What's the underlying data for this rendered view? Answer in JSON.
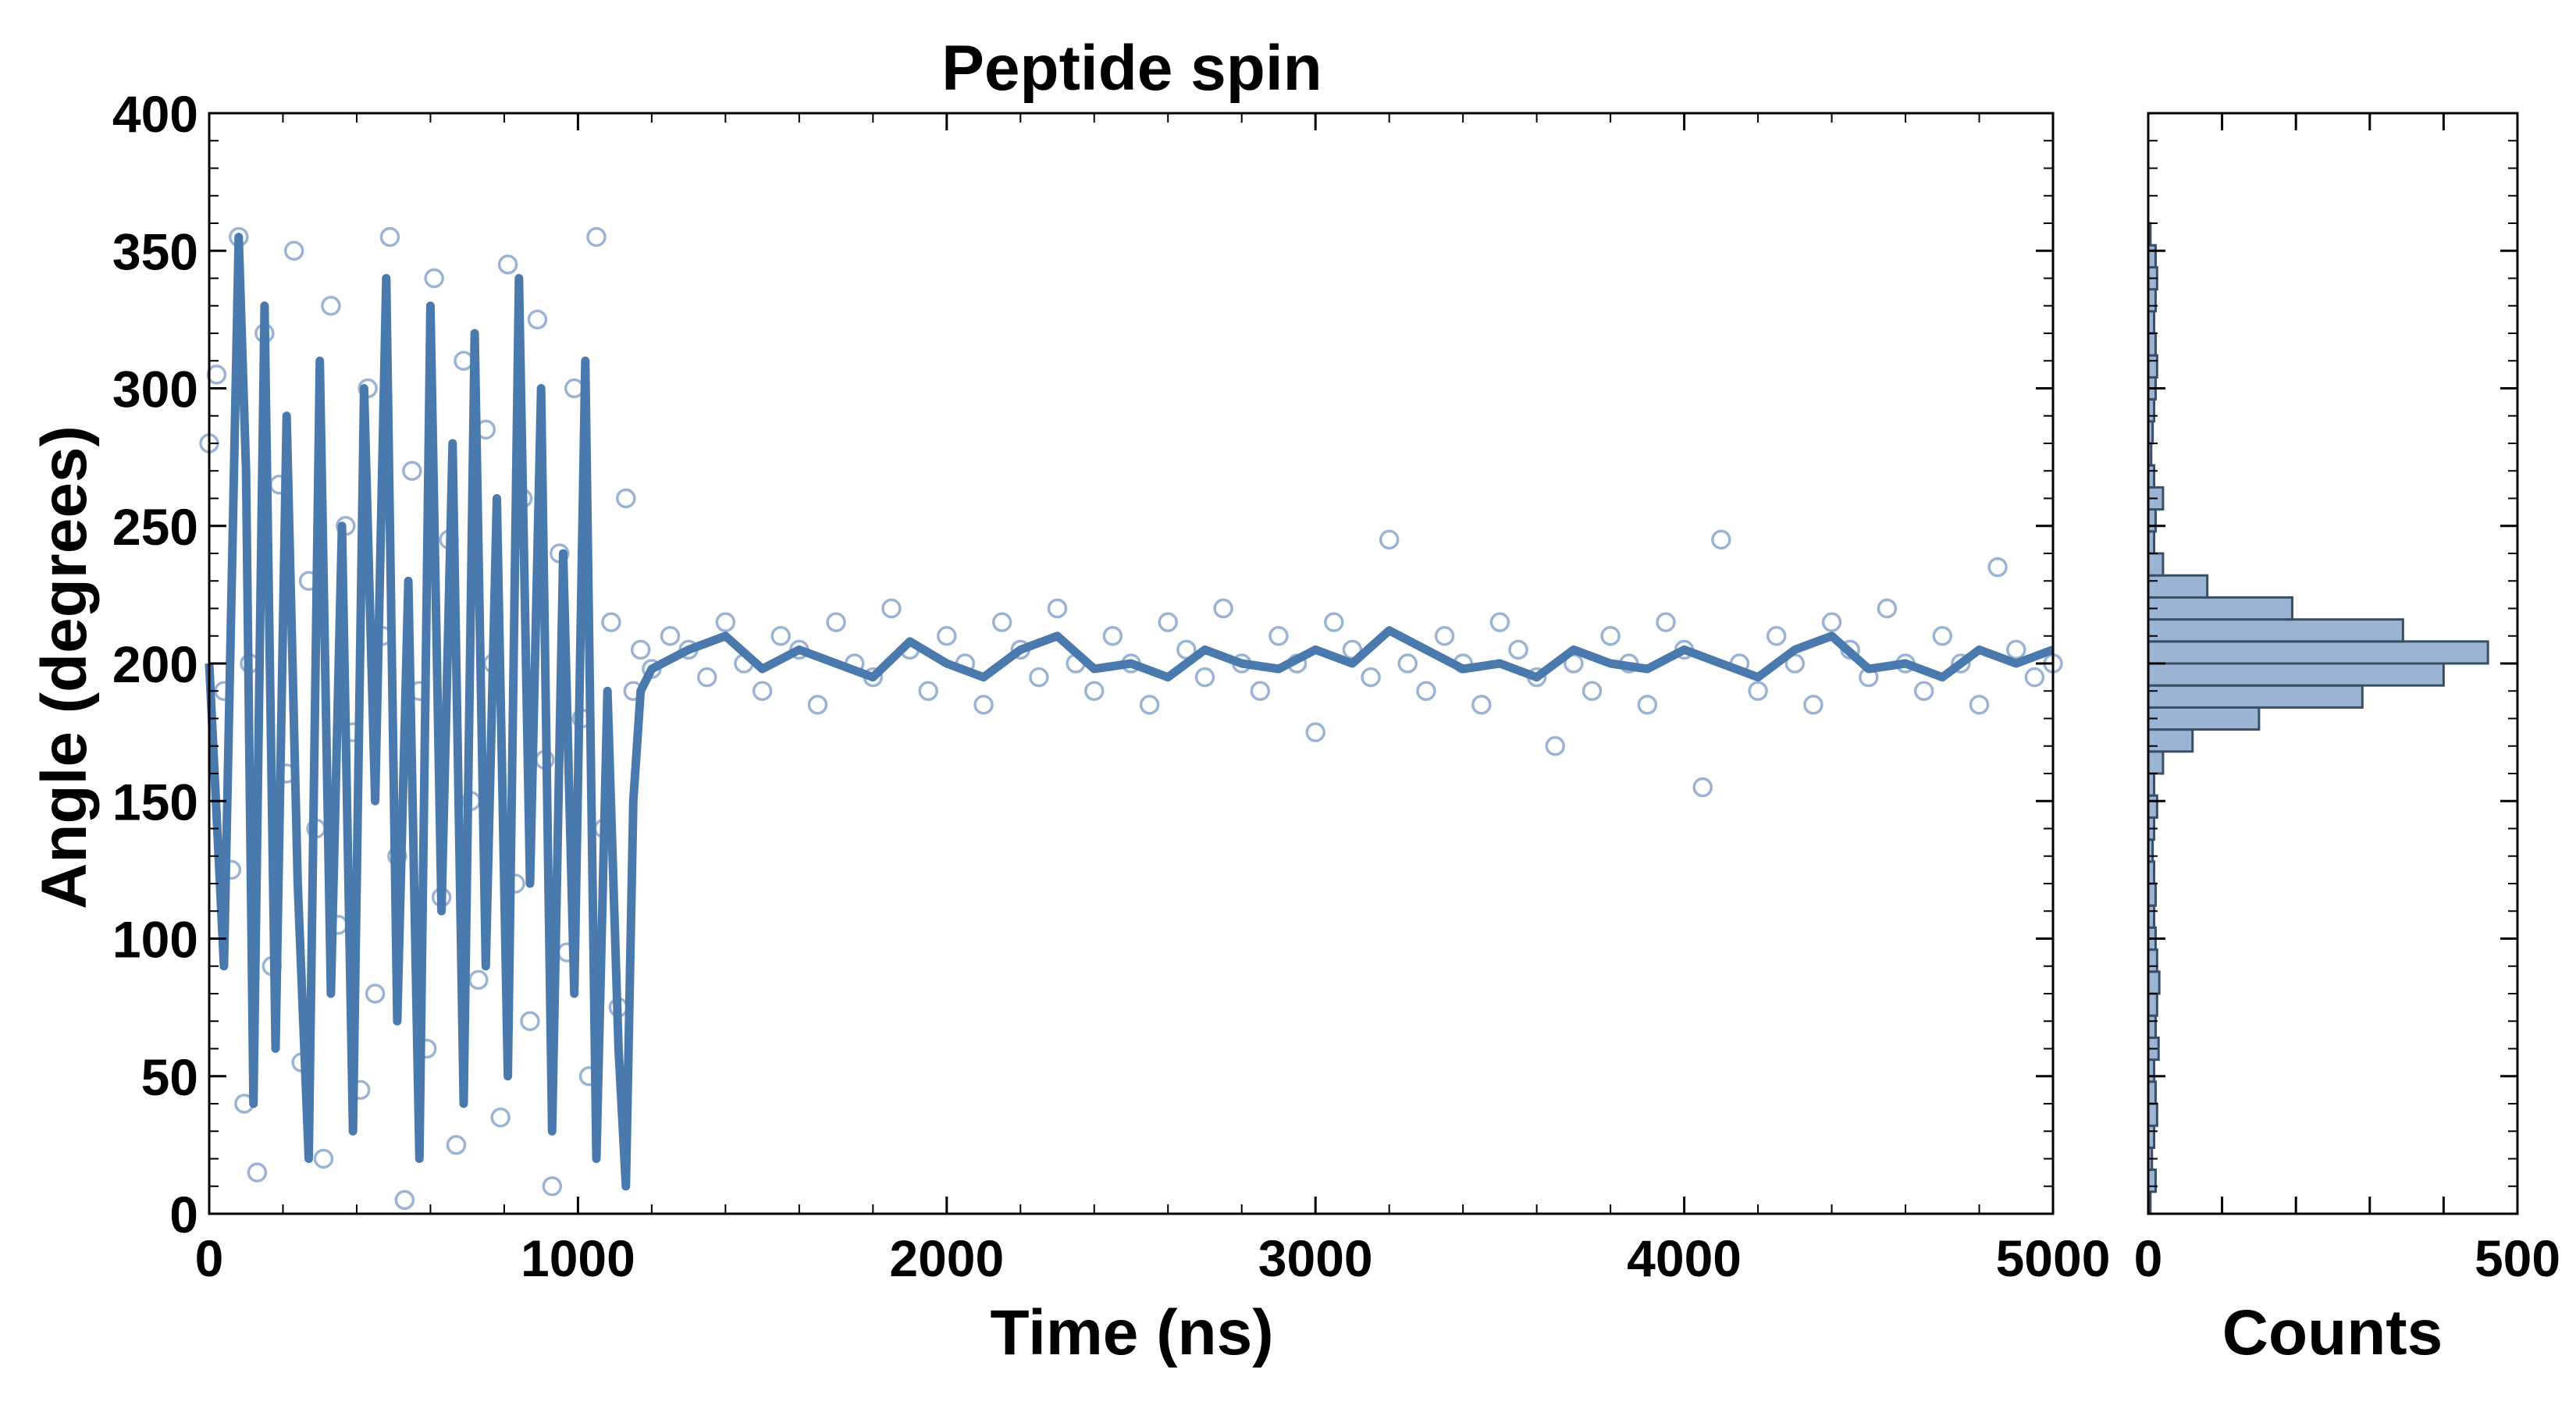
{
  "colors": {
    "series": "#4a7aad",
    "marker_edge": "#9bb4d3",
    "hist_fill": "#9bb4d3",
    "hist_edge": "#3a4f66",
    "axes": "#000000"
  },
  "chart_data": [
    {
      "type": "scatter",
      "title": "Peptide spin",
      "xlabel": "Time (ns)",
      "ylabel": "Angle (degrees)",
      "xlim": [
        0,
        5000
      ],
      "ylim": [
        0,
        400
      ],
      "x_ticks": [
        "0",
        "1000",
        "2000",
        "3000",
        "4000",
        "5000"
      ],
      "y_ticks": [
        "0",
        "50",
        "100",
        "150",
        "200",
        "250",
        "300",
        "350",
        "400"
      ],
      "grid": false,
      "legend": "none",
      "series": [
        {
          "kind": "scatter",
          "marker": "open-circle",
          "description_of_data": "raw angle samples: uniformly spread 0–360° for t<1100 ns, then fluctuating around ~200° (±25°) to 5000 ns",
          "points": [
            [
              0,
              280
            ],
            [
              20,
              305
            ],
            [
              40,
              190
            ],
            [
              60,
              125
            ],
            [
              80,
              355
            ],
            [
              95,
              40
            ],
            [
              110,
              200
            ],
            [
              130,
              15
            ],
            [
              150,
              320
            ],
            [
              170,
              90
            ],
            [
              190,
              265
            ],
            [
              210,
              160
            ],
            [
              230,
              350
            ],
            [
              250,
              55
            ],
            [
              270,
              230
            ],
            [
              290,
              140
            ],
            [
              310,
              20
            ],
            [
              330,
              330
            ],
            [
              350,
              105
            ],
            [
              370,
              250
            ],
            [
              390,
              175
            ],
            [
              410,
              45
            ],
            [
              430,
              300
            ],
            [
              450,
              80
            ],
            [
              470,
              210
            ],
            [
              490,
              355
            ],
            [
              510,
              130
            ],
            [
              530,
              5
            ],
            [
              550,
              270
            ],
            [
              570,
              190
            ],
            [
              590,
              60
            ],
            [
              610,
              340
            ],
            [
              630,
              115
            ],
            [
              650,
              245
            ],
            [
              670,
              25
            ],
            [
              690,
              310
            ],
            [
              710,
              150
            ],
            [
              730,
              85
            ],
            [
              750,
              285
            ],
            [
              770,
              200
            ],
            [
              790,
              35
            ],
            [
              810,
              345
            ],
            [
              830,
              120
            ],
            [
              850,
              260
            ],
            [
              870,
              70
            ],
            [
              890,
              325
            ],
            [
              910,
              165
            ],
            [
              930,
              10
            ],
            [
              950,
              240
            ],
            [
              970,
              95
            ],
            [
              990,
              300
            ],
            [
              1010,
              180
            ],
            [
              1030,
              50
            ],
            [
              1050,
              355
            ],
            [
              1070,
              140
            ],
            [
              1090,
              215
            ],
            [
              1110,
              75
            ],
            [
              1130,
              260
            ],
            [
              1150,
              190
            ],
            [
              1170,
              205
            ],
            [
              1200,
              198
            ],
            [
              1250,
              210
            ],
            [
              1300,
              205
            ],
            [
              1350,
              195
            ],
            [
              1400,
              215
            ],
            [
              1450,
              200
            ],
            [
              1500,
              190
            ],
            [
              1550,
              210
            ],
            [
              1600,
              205
            ],
            [
              1650,
              185
            ],
            [
              1700,
              215
            ],
            [
              1750,
              200
            ],
            [
              1800,
              195
            ],
            [
              1850,
              220
            ],
            [
              1900,
              205
            ],
            [
              1950,
              190
            ],
            [
              2000,
              210
            ],
            [
              2050,
              200
            ],
            [
              2100,
              185
            ],
            [
              2150,
              215
            ],
            [
              2200,
              205
            ],
            [
              2250,
              195
            ],
            [
              2300,
              220
            ],
            [
              2350,
              200
            ],
            [
              2400,
              190
            ],
            [
              2450,
              210
            ],
            [
              2500,
              200
            ],
            [
              2550,
              185
            ],
            [
              2600,
              215
            ],
            [
              2650,
              205
            ],
            [
              2700,
              195
            ],
            [
              2750,
              220
            ],
            [
              2800,
              200
            ],
            [
              2850,
              190
            ],
            [
              2900,
              210
            ],
            [
              2950,
              200
            ],
            [
              3000,
              175
            ],
            [
              3050,
              215
            ],
            [
              3100,
              205
            ],
            [
              3150,
              195
            ],
            [
              3200,
              245
            ],
            [
              3250,
              200
            ],
            [
              3300,
              190
            ],
            [
              3350,
              210
            ],
            [
              3400,
              200
            ],
            [
              3450,
              185
            ],
            [
              3500,
              215
            ],
            [
              3550,
              205
            ],
            [
              3600,
              195
            ],
            [
              3650,
              170
            ],
            [
              3700,
              200
            ],
            [
              3750,
              190
            ],
            [
              3800,
              210
            ],
            [
              3850,
              200
            ],
            [
              3900,
              185
            ],
            [
              3950,
              215
            ],
            [
              4000,
              205
            ],
            [
              4050,
              155
            ],
            [
              4100,
              245
            ],
            [
              4150,
              200
            ],
            [
              4200,
              190
            ],
            [
              4250,
              210
            ],
            [
              4300,
              200
            ],
            [
              4350,
              185
            ],
            [
              4400,
              215
            ],
            [
              4450,
              205
            ],
            [
              4500,
              195
            ],
            [
              4550,
              220
            ],
            [
              4600,
              200
            ],
            [
              4650,
              190
            ],
            [
              4700,
              210
            ],
            [
              4750,
              200
            ],
            [
              4800,
              185
            ],
            [
              4850,
              235
            ],
            [
              4900,
              205
            ],
            [
              4950,
              195
            ],
            [
              5000,
              200
            ]
          ]
        },
        {
          "kind": "line",
          "description_of_data": "smoothed trace: large jumps 0–360° before ~1150 ns, then ~200° with small oscillations",
          "points": [
            [
              0,
              200
            ],
            [
              40,
              90
            ],
            [
              80,
              355
            ],
            [
              100,
              270
            ],
            [
              120,
              40
            ],
            [
              150,
              330
            ],
            [
              180,
              60
            ],
            [
              210,
              290
            ],
            [
              240,
              120
            ],
            [
              270,
              20
            ],
            [
              300,
              310
            ],
            [
              330,
              80
            ],
            [
              360,
              250
            ],
            [
              390,
              30
            ],
            [
              420,
              300
            ],
            [
              450,
              150
            ],
            [
              480,
              340
            ],
            [
              510,
              70
            ],
            [
              540,
              230
            ],
            [
              570,
              20
            ],
            [
              600,
              330
            ],
            [
              630,
              110
            ],
            [
              660,
              280
            ],
            [
              690,
              40
            ],
            [
              720,
              320
            ],
            [
              750,
              90
            ],
            [
              780,
              260
            ],
            [
              810,
              50
            ],
            [
              840,
              340
            ],
            [
              870,
              120
            ],
            [
              900,
              300
            ],
            [
              930,
              30
            ],
            [
              960,
              240
            ],
            [
              990,
              80
            ],
            [
              1020,
              310
            ],
            [
              1050,
              20
            ],
            [
              1080,
              190
            ],
            [
              1110,
              60
            ],
            [
              1130,
              10
            ],
            [
              1150,
              150
            ],
            [
              1170,
              190
            ],
            [
              1200,
              198
            ],
            [
              1300,
              205
            ],
            [
              1400,
              210
            ],
            [
              1500,
              198
            ],
            [
              1600,
              205
            ],
            [
              1700,
              200
            ],
            [
              1800,
              195
            ],
            [
              1900,
              208
            ],
            [
              2000,
              200
            ],
            [
              2100,
              195
            ],
            [
              2200,
              205
            ],
            [
              2300,
              210
            ],
            [
              2400,
              198
            ],
            [
              2500,
              200
            ],
            [
              2600,
              195
            ],
            [
              2700,
              205
            ],
            [
              2800,
              200
            ],
            [
              2900,
              198
            ],
            [
              3000,
              205
            ],
            [
              3100,
              200
            ],
            [
              3200,
              212
            ],
            [
              3300,
              205
            ],
            [
              3400,
              198
            ],
            [
              3500,
              200
            ],
            [
              3600,
              195
            ],
            [
              3700,
              205
            ],
            [
              3800,
              200
            ],
            [
              3900,
              198
            ],
            [
              4000,
              205
            ],
            [
              4100,
              200
            ],
            [
              4200,
              195
            ],
            [
              4300,
              205
            ],
            [
              4400,
              210
            ],
            [
              4500,
              198
            ],
            [
              4600,
              200
            ],
            [
              4700,
              195
            ],
            [
              4800,
              205
            ],
            [
              4900,
              200
            ],
            [
              5000,
              205
            ]
          ]
        }
      ]
    },
    {
      "type": "bar",
      "orientation": "horizontal",
      "xlabel": "Counts",
      "xlim": [
        0,
        500
      ],
      "ylim": [
        0,
        400
      ],
      "x_ticks": [
        "0",
        "500"
      ],
      "bin_width": 8,
      "bins": [
        {
          "y": 0,
          "count": 3
        },
        {
          "y": 8,
          "count": 10
        },
        {
          "y": 16,
          "count": 5
        },
        {
          "y": 24,
          "count": 8
        },
        {
          "y": 32,
          "count": 12
        },
        {
          "y": 40,
          "count": 10
        },
        {
          "y": 48,
          "count": 8
        },
        {
          "y": 56,
          "count": 14
        },
        {
          "y": 64,
          "count": 10
        },
        {
          "y": 72,
          "count": 12
        },
        {
          "y": 80,
          "count": 15
        },
        {
          "y": 88,
          "count": 12
        },
        {
          "y": 96,
          "count": 10
        },
        {
          "y": 104,
          "count": 8
        },
        {
          "y": 112,
          "count": 10
        },
        {
          "y": 120,
          "count": 8
        },
        {
          "y": 128,
          "count": 6
        },
        {
          "y": 136,
          "count": 8
        },
        {
          "y": 144,
          "count": 12
        },
        {
          "y": 152,
          "count": 8
        },
        {
          "y": 160,
          "count": 20
        },
        {
          "y": 168,
          "count": 60
        },
        {
          "y": 176,
          "count": 150
        },
        {
          "y": 184,
          "count": 290
        },
        {
          "y": 192,
          "count": 400
        },
        {
          "y": 200,
          "count": 460
        },
        {
          "y": 208,
          "count": 345
        },
        {
          "y": 216,
          "count": 195
        },
        {
          "y": 224,
          "count": 80
        },
        {
          "y": 232,
          "count": 20
        },
        {
          "y": 240,
          "count": 8
        },
        {
          "y": 248,
          "count": 10
        },
        {
          "y": 256,
          "count": 20
        },
        {
          "y": 264,
          "count": 8
        },
        {
          "y": 272,
          "count": 4
        },
        {
          "y": 280,
          "count": 6
        },
        {
          "y": 288,
          "count": 8
        },
        {
          "y": 296,
          "count": 10
        },
        {
          "y": 304,
          "count": 12
        },
        {
          "y": 312,
          "count": 10
        },
        {
          "y": 320,
          "count": 8
        },
        {
          "y": 328,
          "count": 10
        },
        {
          "y": 336,
          "count": 12
        },
        {
          "y": 344,
          "count": 10
        },
        {
          "y": 352,
          "count": 3
        }
      ]
    }
  ]
}
